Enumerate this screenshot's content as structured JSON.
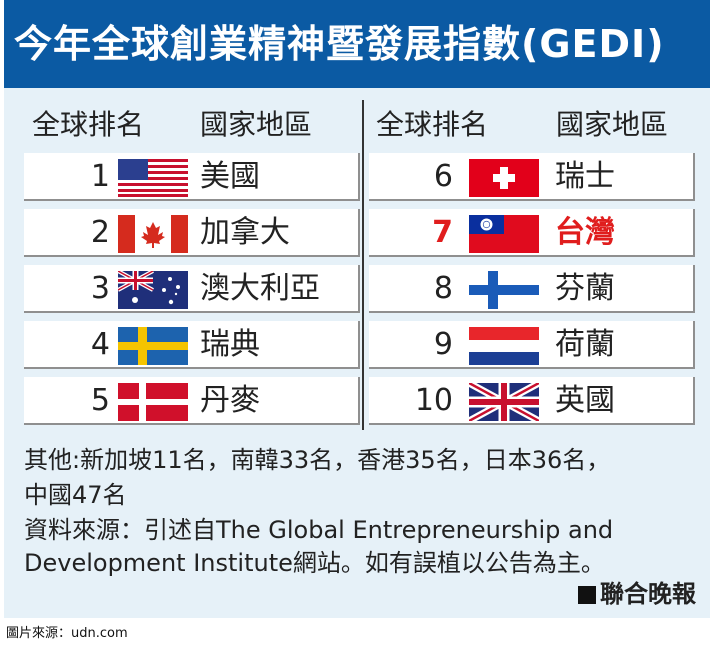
{
  "header": {
    "title": "今年全球創業精神暨發展指數(GEDI)"
  },
  "columns": {
    "rank_label": "全球排名",
    "country_label": "國家地區"
  },
  "rows_left": [
    {
      "rank": "1",
      "country": "美國",
      "flag": "usa-flag-icon"
    },
    {
      "rank": "2",
      "country": "加拿大",
      "flag": "canada-flag-icon"
    },
    {
      "rank": "3",
      "country": "澳大利亞",
      "flag": "australia-flag-icon"
    },
    {
      "rank": "4",
      "country": "瑞典",
      "flag": "sweden-flag-icon"
    },
    {
      "rank": "5",
      "country": "丹麥",
      "flag": "denmark-flag-icon"
    }
  ],
  "rows_right": [
    {
      "rank": "6",
      "country": "瑞士",
      "flag": "switzerland-flag-icon"
    },
    {
      "rank": "7",
      "country": "台灣",
      "flag": "taiwan-flag-icon",
      "highlight": "#e01d1d"
    },
    {
      "rank": "8",
      "country": "芬蘭",
      "flag": "finland-flag-icon"
    },
    {
      "rank": "9",
      "country": "荷蘭",
      "flag": "netherlands-flag-icon"
    },
    {
      "rank": "10",
      "country": "英國",
      "flag": "uk-flag-icon"
    }
  ],
  "notes": {
    "others_line1": "其他:新加坡11名，南韓33名，香港35名，日本36名，",
    "others_line2": "中國47名",
    "source_line1": "資料來源：引述自The Global Entrepreneurship and",
    "source_line2": "Development Institute網站。如有誤植以公告為主。"
  },
  "publisher": "聯合晚報",
  "credit": "圖片來源：udn.com",
  "colors": {
    "header_bg": "#0b5aa3",
    "panel_bg": "#e6f1f8",
    "highlight": "#e01d1d"
  }
}
